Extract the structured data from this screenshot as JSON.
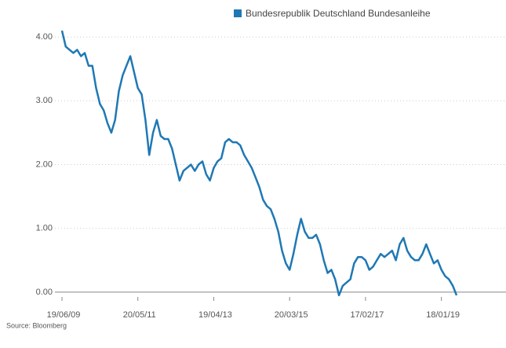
{
  "chart_data": {
    "type": "line",
    "source": "Source: Bloomberg",
    "categories": [
      "19/06/09",
      null,
      null,
      null,
      null,
      null,
      null,
      null,
      null,
      null,
      null,
      null,
      null,
      null,
      null,
      null,
      null,
      null,
      null,
      null,
      "20/05/11",
      null,
      null,
      null,
      null,
      null,
      null,
      null,
      null,
      null,
      null,
      null,
      null,
      null,
      null,
      null,
      null,
      null,
      null,
      null,
      "19/04/13",
      null,
      null,
      null,
      null,
      null,
      null,
      null,
      null,
      null,
      null,
      null,
      null,
      null,
      null,
      null,
      null,
      null,
      null,
      null,
      "20/03/15",
      null,
      null,
      null,
      null,
      null,
      null,
      null,
      null,
      null,
      null,
      null,
      null,
      null,
      null,
      null,
      null,
      null,
      null,
      null,
      "17/02/17",
      null,
      null,
      null,
      null,
      null,
      null,
      null,
      null,
      null,
      null,
      null,
      null,
      null,
      null,
      null,
      null,
      null,
      null,
      null,
      "18/01/19",
      null,
      null,
      null,
      null
    ],
    "series": [
      {
        "name": "Bundesrepublik Deutschland Bundesanleihe",
        "color": "#1f78b4",
        "values": [
          4.1,
          3.85,
          3.8,
          3.75,
          3.8,
          3.7,
          3.75,
          3.55,
          3.55,
          3.2,
          2.95,
          2.85,
          2.65,
          2.5,
          2.7,
          3.15,
          3.4,
          3.55,
          3.7,
          3.45,
          3.2,
          3.1,
          2.7,
          2.15,
          2.5,
          2.7,
          2.45,
          2.4,
          2.4,
          2.25,
          2.0,
          1.75,
          1.9,
          1.95,
          2.0,
          1.9,
          2.0,
          2.05,
          1.85,
          1.75,
          1.95,
          2.05,
          2.1,
          2.35,
          2.4,
          2.35,
          2.35,
          2.3,
          2.15,
          2.05,
          1.95,
          1.8,
          1.65,
          1.45,
          1.35,
          1.3,
          1.15,
          0.95,
          0.65,
          0.45,
          0.35,
          0.6,
          0.9,
          1.15,
          0.95,
          0.85,
          0.85,
          0.9,
          0.75,
          0.5,
          0.3,
          0.35,
          0.2,
          -0.05,
          0.1,
          0.15,
          0.2,
          0.45,
          0.55,
          0.55,
          0.5,
          0.35,
          0.4,
          0.5,
          0.6,
          0.55,
          0.6,
          0.65,
          0.5,
          0.75,
          0.85,
          0.65,
          0.55,
          0.5,
          0.5,
          0.6,
          0.75,
          0.6,
          0.45,
          0.5,
          0.35,
          0.25,
          0.2,
          0.1,
          -0.05
        ]
      }
    ],
    "ylim": [
      -0.1,
      4.1
    ],
    "yticks": [
      {
        "value": 0,
        "label": "0.00"
      },
      {
        "value": 1,
        "label": "1.00"
      },
      {
        "value": 2,
        "label": "2.00"
      },
      {
        "value": 3,
        "label": "3.00"
      },
      {
        "value": 4,
        "label": "4.00"
      }
    ],
    "grid": true
  }
}
